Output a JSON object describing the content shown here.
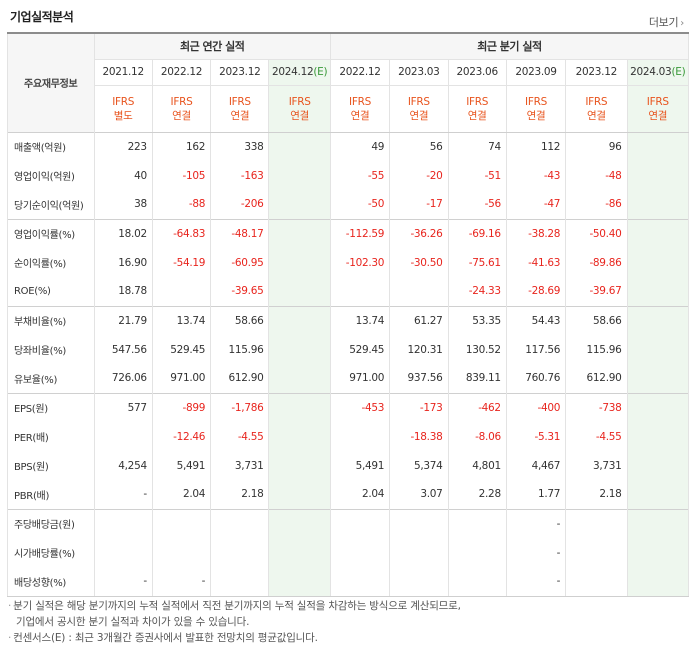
{
  "title": "기업실적분석",
  "more_label": "더보기",
  "corner_label": "주요재무정보",
  "group_annual": "최근 연간 실적",
  "group_quarter": "최근 분기 실적",
  "periods": [
    "2021.12",
    "2022.12",
    "2023.12",
    "2024.12",
    "2022.12",
    "2023.03",
    "2023.06",
    "2023.09",
    "2023.12",
    "2024.03"
  ],
  "estimate_mark": "(E)",
  "ifrs": [
    {
      "a": "IFRS",
      "b": "별도"
    },
    {
      "a": "IFRS",
      "b": "연결"
    },
    {
      "a": "IFRS",
      "b": "연결"
    },
    {
      "a": "IFRS",
      "b": "연결"
    },
    {
      "a": "IFRS",
      "b": "연결"
    },
    {
      "a": "IFRS",
      "b": "연결"
    },
    {
      "a": "IFRS",
      "b": "연결"
    },
    {
      "a": "IFRS",
      "b": "연결"
    },
    {
      "a": "IFRS",
      "b": "연결"
    },
    {
      "a": "IFRS",
      "b": "연결"
    }
  ],
  "rows": [
    {
      "label": "매출액(억원)",
      "values": [
        "223",
        "162",
        "338",
        "",
        "49",
        "56",
        "74",
        "112",
        "96",
        ""
      ]
    },
    {
      "label": "영업이익(억원)",
      "values": [
        "40",
        "-105",
        "-163",
        "",
        "-55",
        "-20",
        "-51",
        "-43",
        "-48",
        ""
      ]
    },
    {
      "label": "당기순이익(억원)",
      "values": [
        "38",
        "-88",
        "-206",
        "",
        "-50",
        "-17",
        "-56",
        "-47",
        "-86",
        ""
      ]
    },
    {
      "label": "영업이익률(%)",
      "values": [
        "18.02",
        "-64.83",
        "-48.17",
        "",
        "-112.59",
        "-36.26",
        "-69.16",
        "-38.28",
        "-50.40",
        ""
      ]
    },
    {
      "label": "순이익률(%)",
      "values": [
        "16.90",
        "-54.19",
        "-60.95",
        "",
        "-102.30",
        "-30.50",
        "-75.61",
        "-41.63",
        "-89.86",
        ""
      ]
    },
    {
      "label": "ROE(%)",
      "values": [
        "18.78",
        "",
        "-39.65",
        "",
        "",
        "",
        "-24.33",
        "-28.69",
        "-39.67",
        ""
      ]
    },
    {
      "label": "부채비율(%)",
      "values": [
        "21.79",
        "13.74",
        "58.66",
        "",
        "13.74",
        "61.27",
        "53.35",
        "54.43",
        "58.66",
        ""
      ]
    },
    {
      "label": "당좌비율(%)",
      "values": [
        "547.56",
        "529.45",
        "115.96",
        "",
        "529.45",
        "120.31",
        "130.52",
        "117.56",
        "115.96",
        ""
      ]
    },
    {
      "label": "유보율(%)",
      "values": [
        "726.06",
        "971.00",
        "612.90",
        "",
        "971.00",
        "937.56",
        "839.11",
        "760.76",
        "612.90",
        ""
      ]
    },
    {
      "label": "EPS(원)",
      "values": [
        "577",
        "-899",
        "-1,786",
        "",
        "-453",
        "-173",
        "-462",
        "-400",
        "-738",
        ""
      ]
    },
    {
      "label": "PER(배)",
      "values": [
        "",
        "-12.46",
        "-4.55",
        "",
        "",
        "-18.38",
        "-8.06",
        "-5.31",
        "-4.55",
        ""
      ]
    },
    {
      "label": "BPS(원)",
      "values": [
        "4,254",
        "5,491",
        "3,731",
        "",
        "5,491",
        "5,374",
        "4,801",
        "4,467",
        "3,731",
        ""
      ]
    },
    {
      "label": "PBR(배)",
      "values": [
        "-",
        "2.04",
        "2.18",
        "",
        "2.04",
        "3.07",
        "2.28",
        "1.77",
        "2.18",
        ""
      ]
    },
    {
      "label": "주당배당금(원)",
      "values": [
        "",
        "",
        "",
        "",
        "",
        "",
        "",
        "-",
        "",
        ""
      ]
    },
    {
      "label": "시가배당률(%)",
      "values": [
        "",
        "",
        "",
        "",
        "",
        "",
        "",
        "-",
        "",
        ""
      ]
    },
    {
      "label": "배당성향(%)",
      "values": [
        "-",
        "-",
        "",
        "",
        "",
        "",
        "",
        "-",
        "",
        ""
      ]
    }
  ],
  "notes": [
    "분기 실적은 해당 분기까지의 누적 실적에서 직전 분기까지의 누적 실적을 차감하는 방식으로 계산되므로,",
    "기업에서 공시한 분기 실적과 차이가 있을 수 있습니다.",
    "컨센서스(E) : 최근 3개월간 증권사에서 발표한 전망치의 평균값입니다."
  ]
}
